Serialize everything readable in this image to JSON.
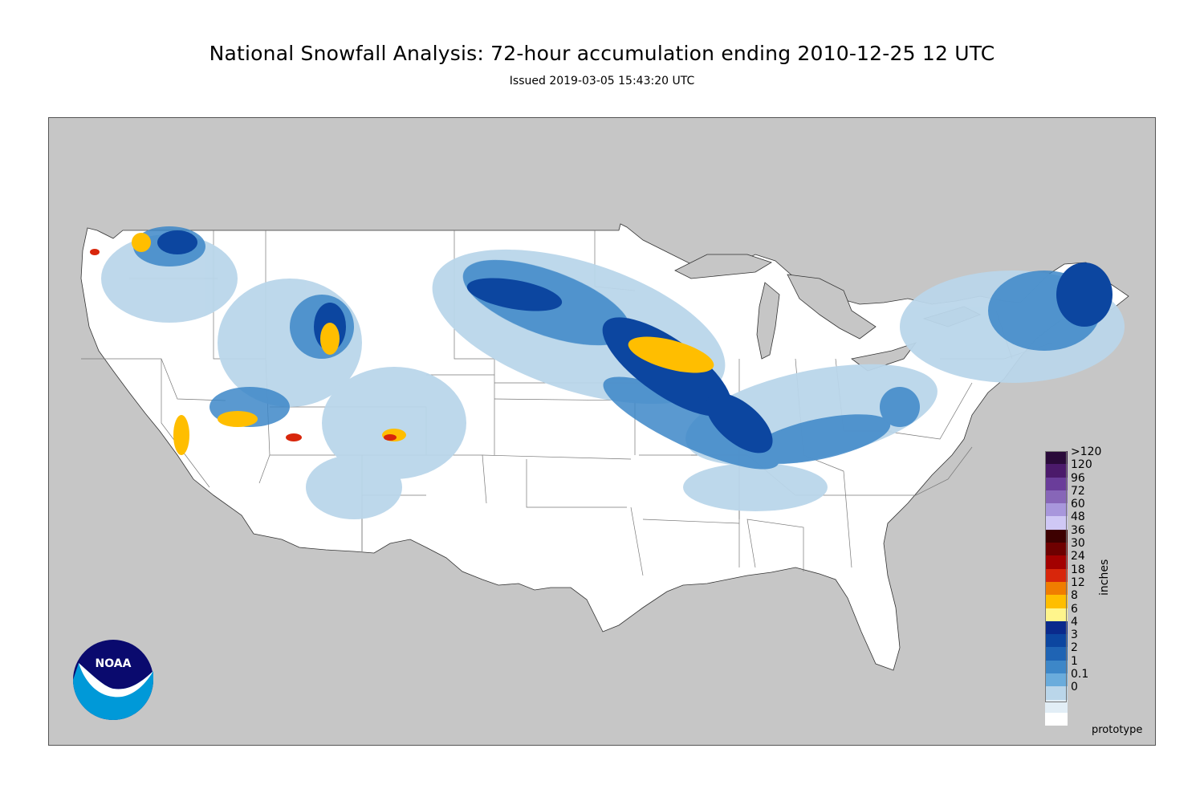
{
  "title": "National Snowfall Analysis: 72-hour accumulation ending 2010-12-25 12 UTC",
  "subtitle": "Issued 2019-03-05 15:43:20 UTC",
  "watermark": "prototype",
  "logo": {
    "text": "NOAA",
    "name": "noaa-logo"
  },
  "legend": {
    "units": "inches",
    "items": [
      {
        "label": ">120",
        "color": "#2a0a3a"
      },
      {
        "label": "120",
        "color": "#4b1a6b"
      },
      {
        "label": "96",
        "color": "#6a3d9a"
      },
      {
        "label": "72",
        "color": "#8766b8"
      },
      {
        "label": "60",
        "color": "#a897dc"
      },
      {
        "label": "48",
        "color": "#cfc8f5"
      },
      {
        "label": "36",
        "color": "#3d0000"
      },
      {
        "label": "30",
        "color": "#6e0000"
      },
      {
        "label": "24",
        "color": "#a30000"
      },
      {
        "label": "18",
        "color": "#d8260b"
      },
      {
        "label": "12",
        "color": "#f07d00"
      },
      {
        "label": "8",
        "color": "#ffbe00"
      },
      {
        "label": "6",
        "color": "#fff58c"
      },
      {
        "label": "4",
        "color": "#0a2a8c"
      },
      {
        "label": "3",
        "color": "#0c46a0"
      },
      {
        "label": "2",
        "color": "#1f64b4"
      },
      {
        "label": "1",
        "color": "#3d87c8"
      },
      {
        "label": "0.1",
        "color": "#6aacdc"
      },
      {
        "label": "0",
        "color": "#bad6ea"
      },
      {
        "label": "",
        "color": "#e2eef6"
      },
      {
        "label": "",
        "color": "#ffffff"
      }
    ]
  }
}
